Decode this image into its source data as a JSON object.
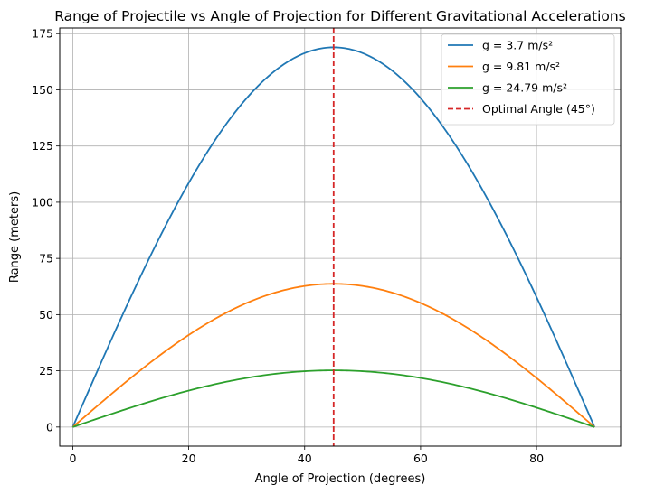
{
  "chart_data": {
    "type": "line",
    "title": "Range of Projectile vs Angle of Projection for Different Gravitational Accelerations",
    "xlabel": "Angle of Projection (degrees)",
    "ylabel": "Range (meters)",
    "xlim": [
      -2.25,
      94.5
    ],
    "ylim": [
      -8.5,
      177.5
    ],
    "xticks": [
      0,
      20,
      40,
      60,
      80
    ],
    "yticks": [
      0,
      25,
      50,
      75,
      100,
      125,
      150,
      175
    ],
    "grid": true,
    "legend_position": "top-right",
    "x_domain": [
      0,
      90
    ],
    "series": [
      {
        "name": "g = 3.7 m/s²",
        "color": "#1f77b4",
        "peak_range": 168.9,
        "peak_angle": 45
      },
      {
        "name": "g = 9.81 m/s²",
        "color": "#ff7f0e",
        "peak_range": 63.7,
        "peak_angle": 45
      },
      {
        "name": "g = 24.79 m/s²",
        "color": "#2ca02c",
        "peak_range": 25.2,
        "peak_angle": 45
      }
    ],
    "reference_line": {
      "name": "Optimal Angle (45°)",
      "x": 45,
      "color": "#d62728",
      "style": "dashed"
    }
  }
}
